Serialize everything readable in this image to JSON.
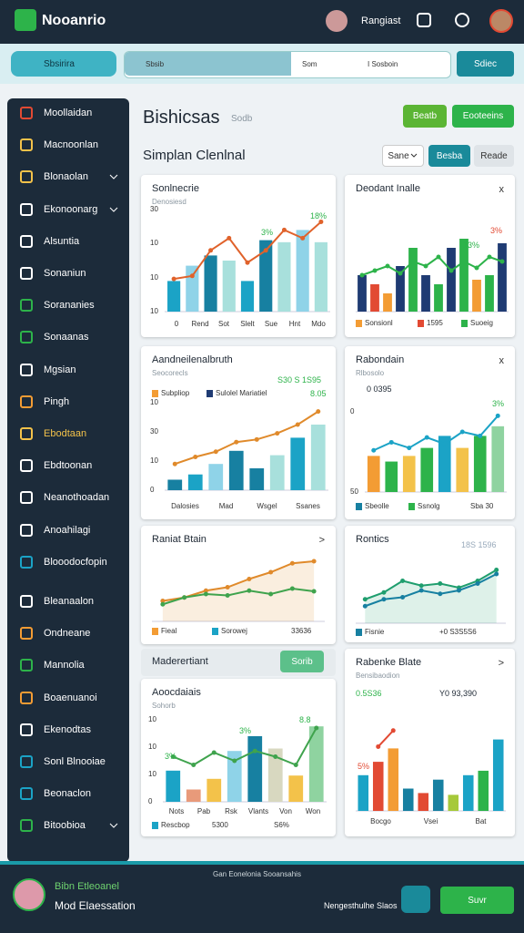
{
  "header": {
    "logo": "Nooanrio",
    "user": "Rangiast"
  },
  "toolbar": {
    "search": "Sbsirira",
    "field": [
      "Sbsib",
      "Som",
      "I Sosboin"
    ],
    "button": "Sdiec"
  },
  "sidebar": [
    "Moollaidan",
    "Macnoonlan",
    "Blonaolan",
    "Ekonoonarg",
    "Alsuntia",
    "Sonaniun",
    "Sorananies",
    "Sonaanas",
    "Mgsian",
    "Pingh",
    "Ebodtaan",
    "Ebdtoonan",
    "Neanothoadan",
    "Anoahilagi",
    "Blooodocfopin",
    "Bleanaalon",
    "Ondneane",
    "Mannolia",
    "Boaenuanoi",
    "Ekenodtas",
    "Sonl Blnooiae",
    "Beonaclon",
    "Bitoobioa"
  ],
  "page": {
    "title": "Bishicsas",
    "title_note": "Sodb",
    "buttons": [
      "Beatb",
      "Eooteeins"
    ],
    "section": "Simplan Clenlnal",
    "select": "Sane",
    "tabs": [
      "Besba",
      "Reade"
    ]
  },
  "banner": {
    "title": "Maderertiant",
    "button": "Sorib"
  },
  "panels": [
    {
      "title": "Sonlnecrie",
      "subtitle": "Denosiesd",
      "y_labels": [
        "30",
        "10",
        "10",
        "10"
      ],
      "x_labels": [
        "0",
        "Rend",
        "Sot",
        "Slelt",
        "Sue",
        "Hnt",
        "Mdo"
      ],
      "notes": [
        "3%",
        "18%"
      ],
      "chart": {
        "ylim": [
          0,
          100
        ],
        "bars": {
          "values": [
            30,
            45,
            55,
            50,
            30,
            70,
            68,
            80,
            68
          ],
          "colors": [
            "#1ba3c6",
            "#8fd3e8",
            "#1780a1",
            "#a8e0dc",
            "#1ba3c6",
            "#1780a1",
            "#a8e0dc",
            "#8fd3e8",
            "#a8e0dc"
          ]
        },
        "lines": [
          {
            "color": "#e0622b",
            "values": [
              32,
              35,
              60,
              72,
              48,
              60,
              80,
              72,
              88
            ]
          }
        ]
      }
    },
    {
      "title": "Deodant Inalle",
      "close": "x",
      "notes": [
        "3%",
        "13%"
      ],
      "legend": [
        "Sonsionl",
        "1595",
        "Suoeig"
      ],
      "chart": {
        "ylim": [
          0,
          100
        ],
        "bars": {
          "values": [
            40,
            30,
            20,
            50,
            70,
            40,
            30,
            70,
            80,
            35,
            40,
            75
          ],
          "colors": [
            "#1f3b73",
            "#e24a33",
            "#f39c34",
            "#1f3b73",
            "#2db34a",
            "#1f3b73",
            "#2db34a",
            "#1f3b73",
            "#2db34a",
            "#f39c34",
            "#2db34a",
            "#1f3b73"
          ]
        },
        "lines": [
          {
            "color": "#2db34a",
            "values": [
              40,
              45,
              50,
              42,
              55,
              50,
              60,
              45,
              55,
              48,
              60,
              55
            ]
          }
        ]
      }
    },
    {
      "title": "Aandneilenalbruth",
      "subtitle": "Seocorecls",
      "y_labels": [
        "10",
        "30",
        "10",
        "0"
      ],
      "x_labels": [
        "Dalosies",
        "Mad",
        "Wsgel",
        "Ssanes"
      ],
      "notes": [
        "S30 S 1S95",
        "8.05"
      ],
      "legend": [
        "Subpliop",
        "Sulolel Mariatiel"
      ],
      "chart": {
        "ylim": [
          0,
          100
        ],
        "bars": {
          "values": [
            12,
            18,
            30,
            45,
            25,
            40,
            60,
            75
          ],
          "colors": [
            "#1780a1",
            "#1ba3c6",
            "#8fd3e8",
            "#1780a1",
            "#1780a1",
            "#a8e0dc",
            "#1ba3c6",
            "#a8e0dc"
          ]
        },
        "lines": [
          {
            "color": "#e08a2b",
            "values": [
              30,
              38,
              44,
              55,
              58,
              65,
              75,
              90
            ]
          }
        ]
      }
    },
    {
      "title": "Rabondain",
      "subtitle": "Rlbosolo",
      "close": "x",
      "y_labels": [
        "0",
        "50"
      ],
      "notes": [
        "0 0395",
        "3%"
      ],
      "legend": [
        "Sbeolle",
        "Ssnolg",
        "Sba 30"
      ],
      "chart": {
        "ylim": [
          0,
          100
        ],
        "bars": {
          "values": [
            45,
            38,
            45,
            55,
            70,
            55,
            70,
            82
          ],
          "colors": [
            "#f39c34",
            "#2db34a",
            "#f3c24a",
            "#2db34a",
            "#1ba3c6",
            "#f3c24a",
            "#2db34a",
            "#8fd3a0"
          ]
        },
        "lines": [
          {
            "color": "#1ba3c6",
            "values": [
              52,
              62,
              55,
              68,
              60,
              75,
              70,
              95
            ]
          }
        ]
      }
    },
    {
      "title": "Raniat Btain",
      "close": ">",
      "legend": [
        "Fieal",
        "Sorowej",
        "33636"
      ],
      "chart": {
        "ylim": [
          0,
          100
        ],
        "area": true,
        "lines": [
          {
            "color": "#e08a2b",
            "values": [
              30,
              35,
              45,
              50,
              62,
              72,
              85,
              88
            ]
          },
          {
            "color": "#3fa34d",
            "values": [
              25,
              35,
              40,
              38,
              45,
              40,
              48,
              44
            ]
          }
        ]
      }
    },
    {
      "title": "Rontics",
      "notes": [
        "18S 1596"
      ],
      "legend": [
        "Fisnie",
        "+0 S3S5S6"
      ],
      "chart": {
        "ylim": [
          0,
          100
        ],
        "area": true,
        "lines": [
          {
            "color": "#1f9e6e",
            "values": [
              35,
              45,
              62,
              55,
              58,
              52,
              62,
              78
            ]
          },
          {
            "color": "#1780a1",
            "values": [
              25,
              35,
              38,
              48,
              43,
              48,
              58,
              72
            ]
          }
        ]
      }
    },
    {
      "title": "Aoocdaiais",
      "subtitle": "Sohorb",
      "y_labels": [
        "10",
        "10",
        "10",
        "0"
      ],
      "x_labels": [
        "Nots",
        "Pab",
        "Rsk",
        "Vlants",
        "Von",
        "Won"
      ],
      "notes": [
        "3%",
        "3%",
        "8.8"
      ],
      "legend": [
        "Rescbop",
        "5300",
        "S6%"
      ],
      "chart": {
        "ylim": [
          0,
          100
        ],
        "bars": {
          "values": [
            38,
            15,
            28,
            62,
            80,
            65,
            32,
            92
          ],
          "colors": [
            "#1ba3c6",
            "#e89a7a",
            "#f3c24a",
            "#8fd3e8",
            "#1780a1",
            "#d8d8c0",
            "#f3c24a",
            "#8fd3a0"
          ]
        },
        "lines": [
          {
            "color": "#3fa34d",
            "values": [
              55,
              45,
              60,
              50,
              62,
              55,
              45,
              90
            ]
          }
        ]
      }
    },
    {
      "title": "Rabenke Blate",
      "subtitle": "Bensibaodion",
      "close": ">",
      "notes": [
        "0.5S36",
        "Y0 93,390",
        "5%"
      ],
      "x_labels": [
        "Bocgo",
        "Vsei",
        "Bat"
      ],
      "chart": {
        "ylim": [
          0,
          100
        ],
        "bars": {
          "values": [
            40,
            55,
            70,
            25,
            20,
            35,
            18,
            40,
            45,
            80
          ],
          "colors": [
            "#1ba3c6",
            "#e24a33",
            "#f39c34",
            "#1780a1",
            "#e24a33",
            "#1780a1",
            "#a6c93a",
            "#1ba3c6",
            "#2db34a",
            "#1ba3c6"
          ]
        },
        "lines": [
          {
            "color": "#e24a33",
            "values": [
              null,
              72,
              90,
              null,
              null,
              null,
              null,
              null,
              null,
              null
            ]
          }
        ]
      }
    }
  ],
  "footer": {
    "name": "Bibn Etleoanel",
    "subtitle": "Mod Elaessation",
    "notice": "Gan Eonelonia Sooansahis",
    "status": "Nengesthulhe Slaos",
    "button": "Suvr"
  }
}
